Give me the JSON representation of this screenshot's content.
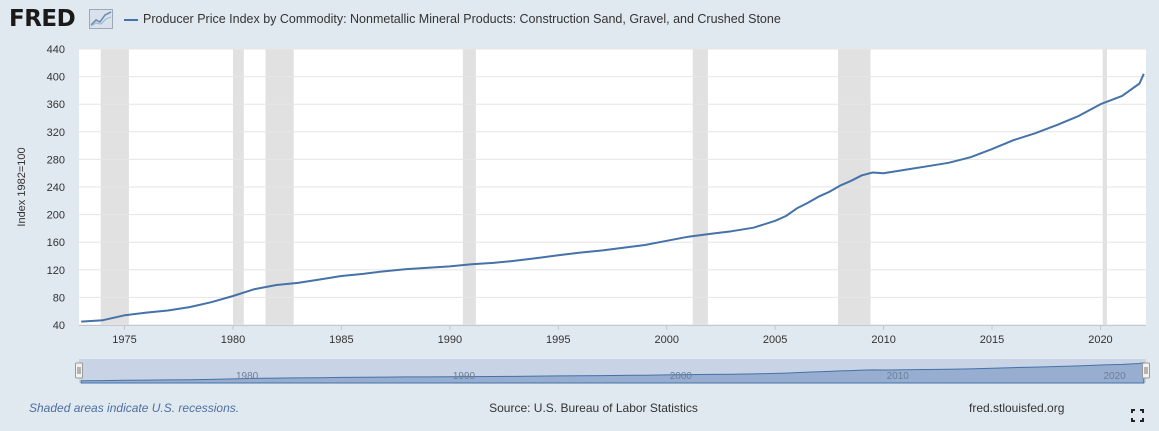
{
  "header": {
    "logo_text": "FRED",
    "logo_icon": "line-graph-icon",
    "title": "Producer Price Index by Commodity: Nonmetallic Mineral Products: Construction Sand, Gravel, and Crushed Stone"
  },
  "footer": {
    "recession_note": "Shaded areas indicate U.S. recessions.",
    "source": "Source: U.S. Bureau of Labor Statistics",
    "site": "fred.stlouisfed.org",
    "fullscreen_icon": "fullscreen-icon"
  },
  "colors": {
    "series": "#4572a7",
    "recession": "#e1e1e1",
    "background": "#e1e9f0"
  },
  "chart_data": {
    "type": "line",
    "title": "Producer Price Index by Commodity: Nonmetallic Mineral Products: Construction Sand, Gravel, and Crushed Stone",
    "xlabel": "",
    "ylabel": "Index 1982=100",
    "xlim": [
      1972.9,
      2022.1
    ],
    "ylim": [
      40,
      440
    ],
    "x_ticks": [
      1975,
      1980,
      1985,
      1990,
      1995,
      2000,
      2005,
      2010,
      2015,
      2020
    ],
    "y_ticks": [
      40,
      80,
      120,
      160,
      200,
      240,
      280,
      320,
      360,
      400,
      440
    ],
    "grid": "horizontal",
    "recessions": [
      [
        1973.9,
        1975.2
      ],
      [
        1980.0,
        1980.5
      ],
      [
        1981.5,
        1982.8
      ],
      [
        1990.6,
        1991.2
      ],
      [
        2001.2,
        2001.9
      ],
      [
        2007.9,
        2009.4
      ],
      [
        2020.1,
        2020.3
      ]
    ],
    "navigator_ticks": [
      1980,
      1990,
      2000,
      2010,
      2020
    ],
    "series": [
      {
        "x": [
          1973.0,
          1974.0,
          1975.0,
          1976.0,
          1977.0,
          1978.0,
          1979.0,
          1980.0,
          1981.0,
          1982.0,
          1983.0,
          1984.0,
          1985.0,
          1986.0,
          1987.0,
          1988.0,
          1989.0,
          1990.0,
          1991.0,
          1992.0,
          1993.0,
          1994.0,
          1995.0,
          1996.0,
          1997.0,
          1998.0,
          1999.0,
          2000.0,
          2001.0,
          2002.0,
          2003.0,
          2004.0,
          2005.0,
          2005.5,
          2006.0,
          2006.5,
          2007.0,
          2007.5,
          2008.0,
          2008.5,
          2009.0,
          2009.5,
          2010.0,
          2011.0,
          2012.0,
          2013.0,
          2014.0,
          2015.0,
          2016.0,
          2017.0,
          2018.0,
          2019.0,
          2020.0,
          2021.0,
          2021.8,
          2022.0
        ],
        "y": [
          45,
          47,
          54,
          58,
          61,
          66,
          73,
          82,
          92,
          98,
          101,
          106,
          111,
          114,
          118,
          121,
          123,
          125,
          128,
          130,
          133,
          137,
          141,
          145,
          148,
          152,
          156,
          162,
          168,
          172,
          176,
          181,
          191,
          198,
          209,
          217,
          226,
          233,
          242,
          249,
          257,
          261,
          260,
          265,
          270,
          275,
          283,
          295,
          308,
          318,
          330,
          343,
          360,
          372,
          390,
          404
        ]
      }
    ]
  }
}
